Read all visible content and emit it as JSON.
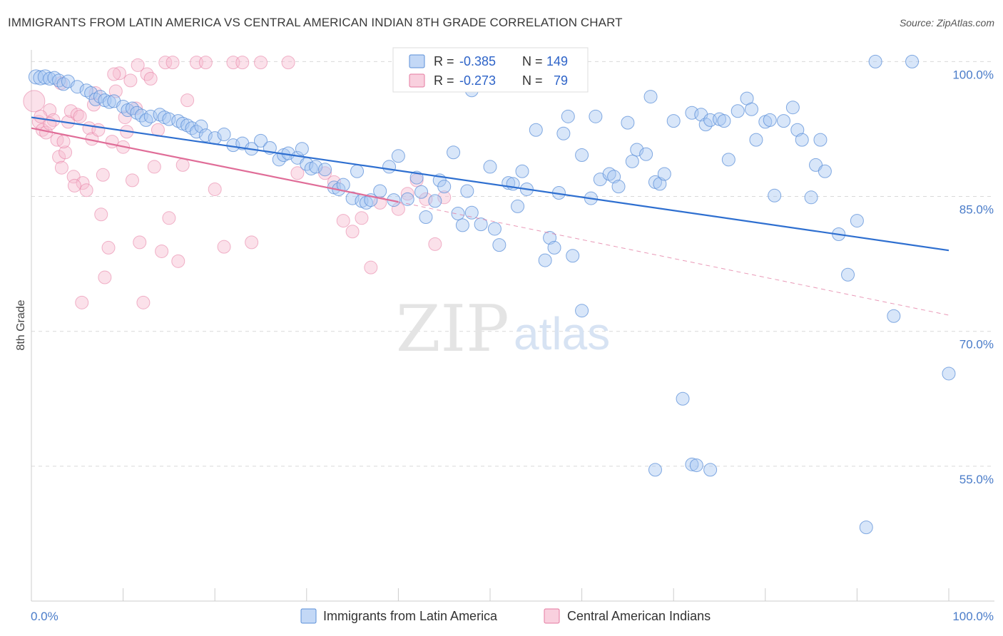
{
  "title": "IMMIGRANTS FROM LATIN AMERICA VS CENTRAL AMERICAN INDIAN 8TH GRADE CORRELATION CHART",
  "source": "Source: ZipAtlas.com",
  "watermark": {
    "zip": "ZIP",
    "atlas": "atlas"
  },
  "colors": {
    "blue": "#5b8fd8",
    "blue_fill": "#a9c8f2",
    "pink": "#e57aa0",
    "pink_fill": "#f7bcd0",
    "blue_line": "#2e6fd0",
    "pink_line": "#e06d98"
  },
  "legend": {
    "blue": {
      "r_label": "R = ",
      "r_value": "-0.385",
      "n_label": "N = ",
      "n_value": "149"
    },
    "pink": {
      "r_label": "R = ",
      "r_value": "-0.273",
      "n_label": "N = ",
      "n_value": "79"
    }
  },
  "chart_data": {
    "type": "scatter",
    "title": "IMMIGRANTS FROM LATIN AMERICA VS CENTRAL AMERICAN INDIAN 8TH GRADE CORRELATION CHART",
    "xlabel": "",
    "ylabel": "8th Grade",
    "xlim": [
      0,
      100
    ],
    "ylim": [
      40,
      101.3
    ],
    "x_ticks": [
      "0.0%",
      "100.0%"
    ],
    "y_ticks": [
      {
        "v": 100,
        "label": "100.0%"
      },
      {
        "v": 85,
        "label": "85.0%"
      },
      {
        "v": 70,
        "label": "70.0%"
      },
      {
        "v": 55,
        "label": "55.0%"
      }
    ],
    "series": [
      {
        "name": "Immigrants from Latin America",
        "trend": [
          [
            0,
            93.8
          ],
          [
            100,
            79.0
          ]
        ],
        "points": [
          [
            0.5,
            98.3
          ],
          [
            1,
            98.2
          ],
          [
            1.5,
            98.3
          ],
          [
            2,
            98.1
          ],
          [
            2.5,
            98.2
          ],
          [
            3,
            97.9
          ],
          [
            3.5,
            97.5
          ],
          [
            4,
            97.8
          ],
          [
            5,
            97.2
          ],
          [
            6,
            96.8
          ],
          [
            6.5,
            96.5
          ],
          [
            7,
            95.8
          ],
          [
            7.5,
            96.1
          ],
          [
            8,
            95.7
          ],
          [
            8.5,
            95.5
          ],
          [
            9,
            95.6
          ],
          [
            10,
            95
          ],
          [
            10.5,
            94.6
          ],
          [
            11,
            94.8
          ],
          [
            11.5,
            94.3
          ],
          [
            12,
            94
          ],
          [
            12.5,
            93.5
          ],
          [
            13,
            93.9
          ],
          [
            14,
            94.1
          ],
          [
            14.5,
            93.8
          ],
          [
            15,
            93.6
          ],
          [
            16,
            93.4
          ],
          [
            16.5,
            93.1
          ],
          [
            17,
            92.9
          ],
          [
            17.5,
            92.6
          ],
          [
            18,
            92.2
          ],
          [
            18.5,
            92.8
          ],
          [
            19,
            91.8
          ],
          [
            20,
            91.5
          ],
          [
            21,
            91.9
          ],
          [
            22,
            90.7
          ],
          [
            23,
            90.9
          ],
          [
            24,
            90.3
          ],
          [
            25,
            91.2
          ],
          [
            26,
            90.4
          ],
          [
            27,
            89.1
          ],
          [
            27.5,
            89.6
          ],
          [
            28,
            89.8
          ],
          [
            29,
            89.3
          ],
          [
            29.5,
            90.3
          ],
          [
            30,
            88.6
          ],
          [
            30.5,
            88.1
          ],
          [
            31,
            88.3
          ],
          [
            32,
            88
          ],
          [
            33,
            86
          ],
          [
            33.5,
            85.8
          ],
          [
            34,
            86.3
          ],
          [
            35,
            84.8
          ],
          [
            35.5,
            87.8
          ],
          [
            36,
            84.5
          ],
          [
            36.5,
            84.3
          ],
          [
            37,
            84.6
          ],
          [
            38,
            85.6
          ],
          [
            39,
            88.3
          ],
          [
            39.5,
            84.6
          ],
          [
            40,
            89.5
          ],
          [
            41,
            84.7
          ],
          [
            42,
            87.1
          ],
          [
            42.5,
            85.5
          ],
          [
            43,
            82.7
          ],
          [
            44,
            84.5
          ],
          [
            44.5,
            86.8
          ],
          [
            45,
            86.1
          ],
          [
            46,
            89.9
          ],
          [
            46.5,
            83.1
          ],
          [
            47,
            81.8
          ],
          [
            47.5,
            85.6
          ],
          [
            48,
            83.2
          ],
          [
            49,
            81.9
          ],
          [
            50,
            88.3
          ],
          [
            50.5,
            81.4
          ],
          [
            51,
            79.6
          ],
          [
            52,
            86.5
          ],
          [
            52.5,
            86.4
          ],
          [
            53,
            83.9
          ],
          [
            53.5,
            87.8
          ],
          [
            54,
            85.8
          ],
          [
            55,
            92.4
          ],
          [
            56,
            77.9
          ],
          [
            56.5,
            80.4
          ],
          [
            57,
            79.3
          ],
          [
            57.5,
            85.4
          ],
          [
            58,
            92
          ],
          [
            58.5,
            93.9
          ],
          [
            59,
            78.4
          ],
          [
            60,
            89.6
          ],
          [
            61,
            84.8
          ],
          [
            61.5,
            93.9
          ],
          [
            62,
            86.9
          ],
          [
            63,
            87.5
          ],
          [
            63.5,
            87.2
          ],
          [
            64,
            86.1
          ],
          [
            65,
            93.2
          ],
          [
            65.5,
            88.9
          ],
          [
            66,
            90.2
          ],
          [
            67,
            89.7
          ],
          [
            67.5,
            96.1
          ],
          [
            68,
            86.6
          ],
          [
            68.5,
            86.4
          ],
          [
            69,
            87.5
          ],
          [
            70,
            93.4
          ],
          [
            71,
            62.5
          ],
          [
            72,
            55.2
          ],
          [
            72.5,
            55.1
          ],
          [
            72,
            94.3
          ],
          [
            73,
            94.1
          ],
          [
            73.5,
            93
          ],
          [
            74,
            93.5
          ],
          [
            75,
            93.6
          ],
          [
            75.5,
            93.4
          ],
          [
            76,
            89.1
          ],
          [
            77,
            94.5
          ],
          [
            78,
            95.9
          ],
          [
            78.5,
            94.7
          ],
          [
            79,
            91.3
          ],
          [
            80,
            93.3
          ],
          [
            80.5,
            93.5
          ],
          [
            81,
            85.1
          ],
          [
            82,
            93.4
          ],
          [
            83,
            94.9
          ],
          [
            83.5,
            92.4
          ],
          [
            84,
            91.3
          ],
          [
            85,
            84.9
          ],
          [
            85.5,
            88.5
          ],
          [
            86,
            91.3
          ],
          [
            86.5,
            87.8
          ],
          [
            88,
            80.8
          ],
          [
            89,
            76.3
          ],
          [
            90,
            82.3
          ],
          [
            91,
            48.2
          ],
          [
            92,
            100
          ],
          [
            94,
            71.7
          ],
          [
            96,
            100
          ],
          [
            100,
            65.3
          ],
          [
            68,
            54.6
          ],
          [
            74,
            54.6
          ],
          [
            60,
            72.3
          ],
          [
            48,
            96.8
          ]
        ]
      },
      {
        "name": "Central American Indians",
        "trend": [
          [
            0,
            92.6
          ],
          [
            40,
            84.4
          ]
        ],
        "trend_ext": [
          [
            40,
            84.4
          ],
          [
            100,
            71.8
          ]
        ],
        "points": [
          [
            0.3,
            95.6
          ],
          [
            0.8,
            93.3
          ],
          [
            1.2,
            92.4
          ],
          [
            1.6,
            92.1
          ],
          [
            2,
            94.6
          ],
          [
            2.4,
            93.5
          ],
          [
            2.8,
            91.3
          ],
          [
            3,
            89.4
          ],
          [
            3.3,
            88.2
          ],
          [
            3.7,
            89.9
          ],
          [
            4,
            93.3
          ],
          [
            4.3,
            94.5
          ],
          [
            4.6,
            87.2
          ],
          [
            5,
            94.1
          ],
          [
            5.3,
            93.9
          ],
          [
            5.6,
            86.5
          ],
          [
            6,
            85.7
          ],
          [
            6.3,
            92.6
          ],
          [
            6.6,
            91.4
          ],
          [
            7,
            96.5
          ],
          [
            7.3,
            92.4
          ],
          [
            7.6,
            83
          ],
          [
            8,
            76
          ],
          [
            8.4,
            79.3
          ],
          [
            8.8,
            91.1
          ],
          [
            9.2,
            96.7
          ],
          [
            9.6,
            98.7
          ],
          [
            10,
            90.5
          ],
          [
            10.4,
            92.2
          ],
          [
            10.8,
            97.9
          ],
          [
            11,
            86.8
          ],
          [
            11.4,
            94.8
          ],
          [
            11.8,
            79.9
          ],
          [
            12.2,
            73.2
          ],
          [
            12.6,
            98.6
          ],
          [
            13,
            98.1
          ],
          [
            13.4,
            88.3
          ],
          [
            13.8,
            92.4
          ],
          [
            14.2,
            78.9
          ],
          [
            14.6,
            99.9
          ],
          [
            15,
            82.6
          ],
          [
            15.4,
            99.9
          ],
          [
            16,
            77.8
          ],
          [
            16.5,
            88.5
          ],
          [
            17,
            95.7
          ],
          [
            18,
            99.9
          ],
          [
            19,
            99.9
          ],
          [
            20,
            85.8
          ],
          [
            21,
            79.4
          ],
          [
            22,
            99.9
          ],
          [
            23,
            99.9
          ],
          [
            24,
            79.9
          ],
          [
            25,
            99.9
          ],
          [
            28,
            99.9
          ],
          [
            29,
            87.6
          ],
          [
            32,
            87.6
          ],
          [
            33,
            86.6
          ],
          [
            34,
            82.3
          ],
          [
            35,
            81.1
          ],
          [
            36,
            82.6
          ],
          [
            37,
            77.1
          ],
          [
            38,
            84.3
          ],
          [
            40,
            83.6
          ],
          [
            41,
            85.3
          ],
          [
            42,
            86.8
          ],
          [
            43,
            84.7
          ],
          [
            44,
            79.7
          ],
          [
            45,
            84.9
          ],
          [
            5.5,
            73.2
          ],
          [
            9,
            98.6
          ],
          [
            2,
            93.1
          ],
          [
            1,
            93.9
          ],
          [
            3.5,
            91.1
          ],
          [
            4.7,
            86.2
          ],
          [
            6.8,
            95.2
          ],
          [
            7.8,
            87.4
          ],
          [
            3.2,
            97.6
          ],
          [
            10.2,
            93.8
          ],
          [
            11.6,
            99.6
          ]
        ]
      }
    ]
  },
  "bottom_legend": [
    "Immigrants from Latin America",
    "Central American Indians"
  ]
}
